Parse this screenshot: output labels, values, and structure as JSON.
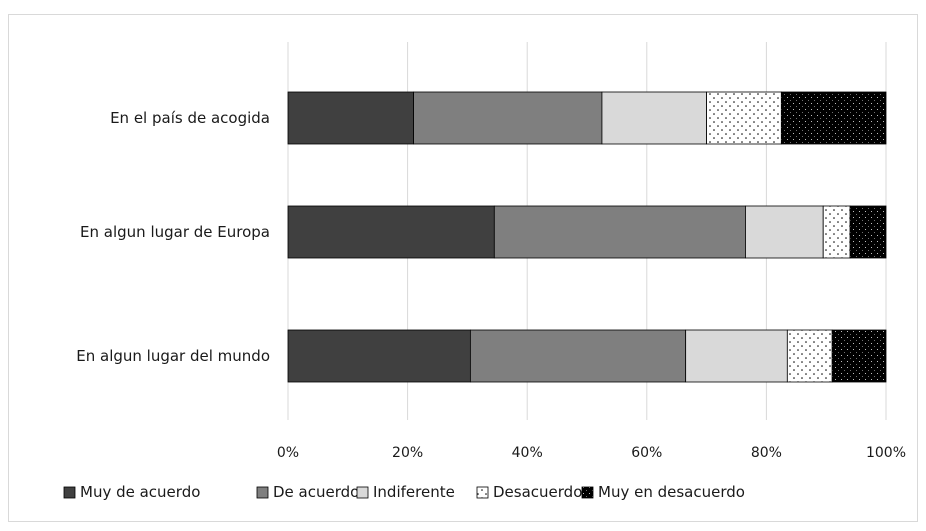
{
  "chart_data": {
    "type": "bar",
    "orientation": "horizontal",
    "stacked": "percent",
    "categories": [
      "En el país de acogida",
      "En algun lugar de Europa",
      "En algun lugar del mundo"
    ],
    "series": [
      {
        "name": "Muy de acuerdo",
        "values": [
          21,
          34.5,
          30.5
        ],
        "color": "#404040",
        "pattern": "solid"
      },
      {
        "name": "De acuerdo",
        "values": [
          31.5,
          42,
          36
        ],
        "color": "#7f7f7f",
        "pattern": "solid"
      },
      {
        "name": "Indiferente",
        "values": [
          17.5,
          13,
          17
        ],
        "color": "#d9d9d9",
        "pattern": "solid"
      },
      {
        "name": "Desacuerdo",
        "values": [
          12.5,
          4.5,
          7.5
        ],
        "color": "#ffffff",
        "pattern": "dots"
      },
      {
        "name": "Muy en desacuerdo",
        "values": [
          17.5,
          6,
          9
        ],
        "color": "#000000",
        "pattern": "speckle"
      }
    ],
    "x_ticks": [
      "0%",
      "20%",
      "40%",
      "60%",
      "80%",
      "100%"
    ],
    "xlim": [
      0,
      100
    ],
    "grid": true,
    "legend": "bottom",
    "title": "",
    "xlabel": "",
    "ylabel": ""
  }
}
